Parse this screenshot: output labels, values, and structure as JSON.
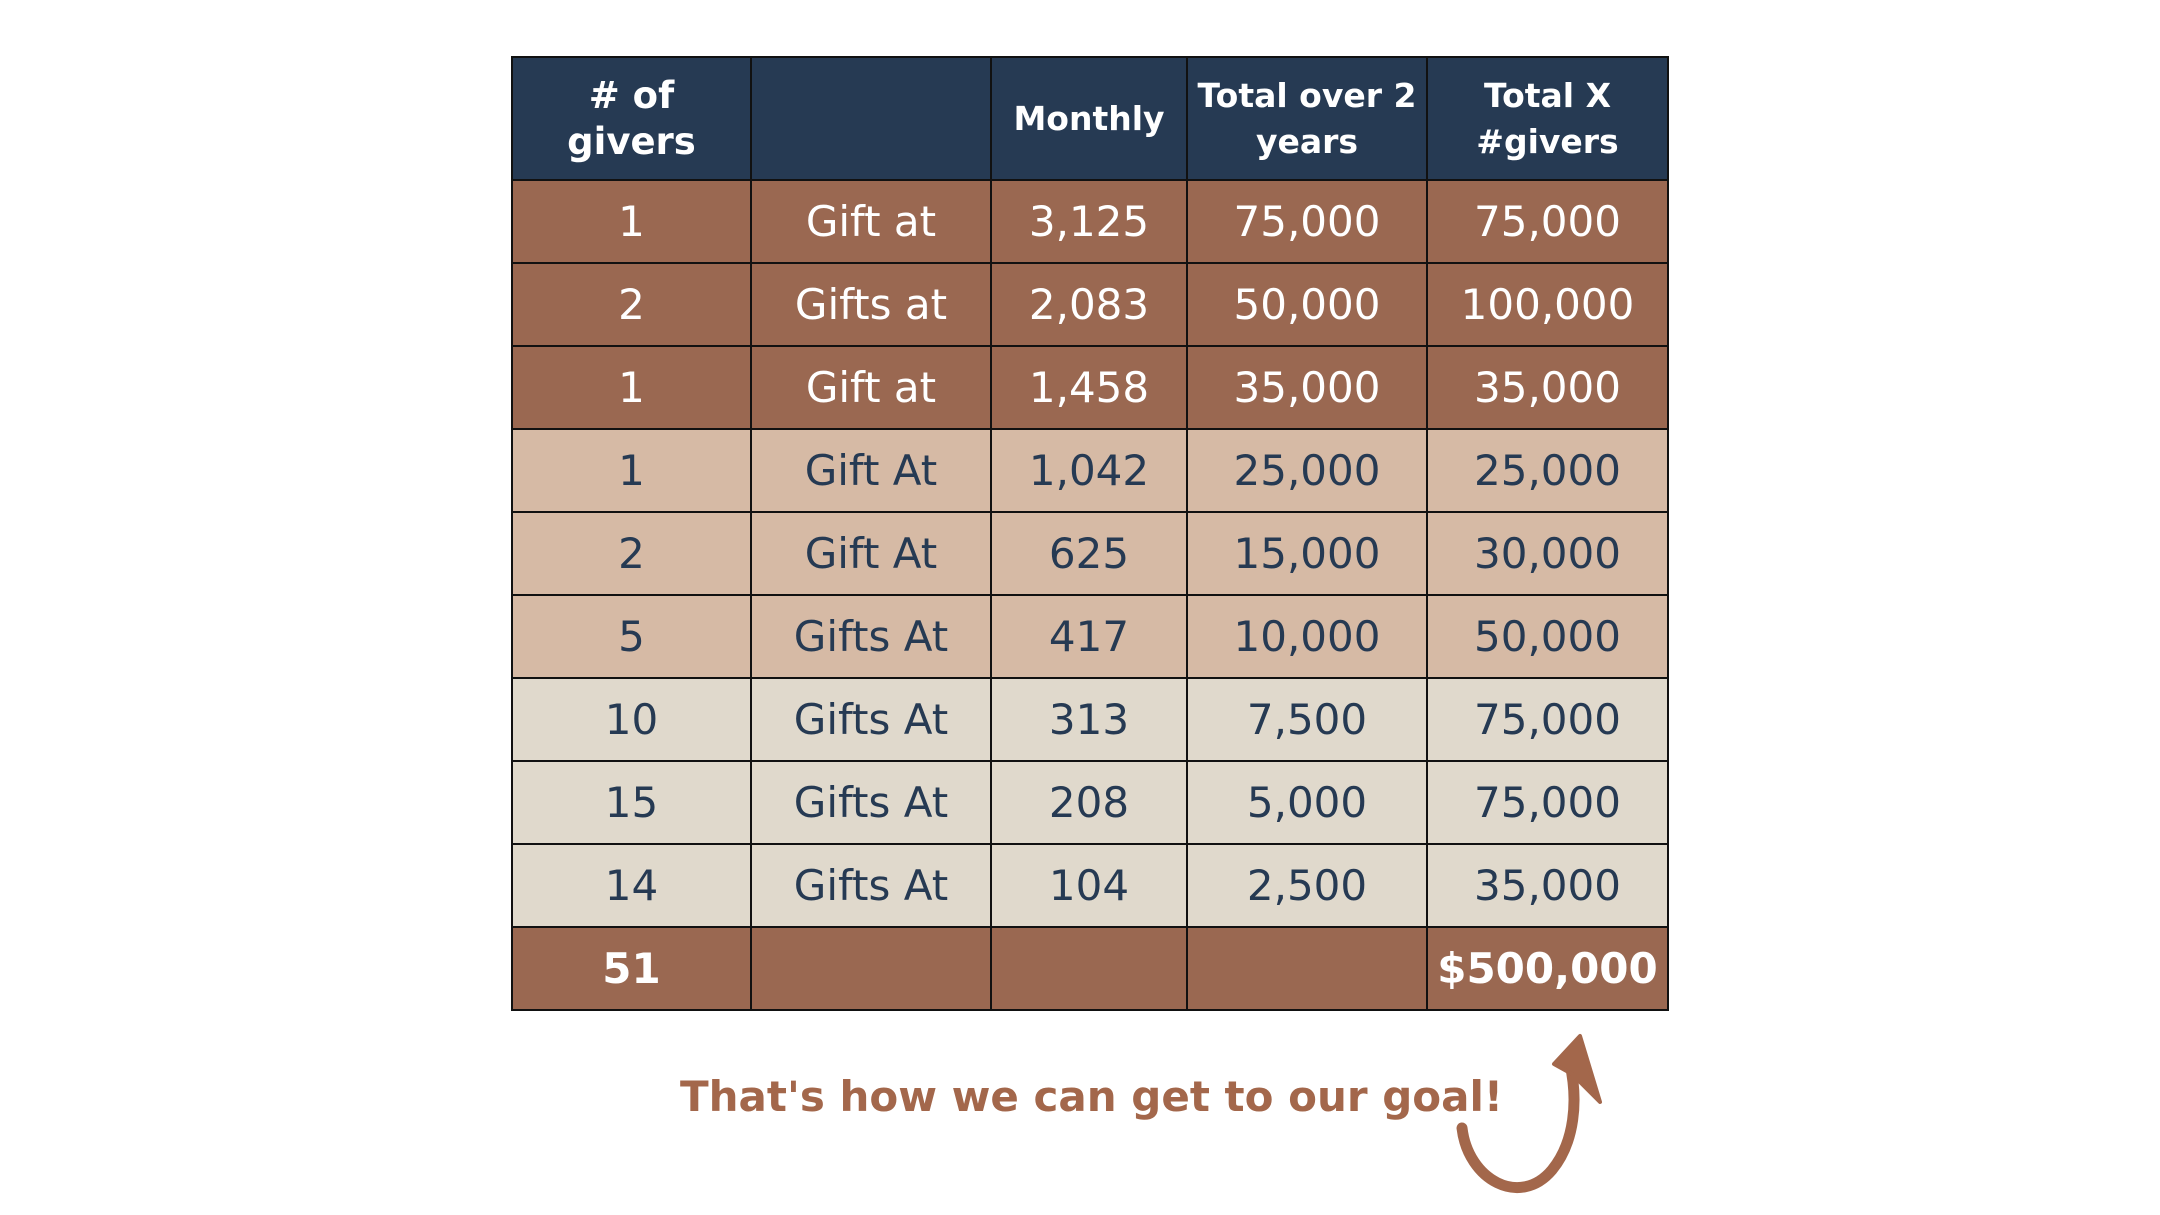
{
  "table": {
    "headers": [
      "# of givers",
      "",
      "Monthly",
      "Total over 2 years",
      "Total X #givers"
    ],
    "rows": [
      {
        "givers": "1",
        "label": "Gift at",
        "monthly": "3,125",
        "total2y": "75,000",
        "totalX": "75,000",
        "tier": "dark"
      },
      {
        "givers": "2",
        "label": "Gifts at",
        "monthly": "2,083",
        "total2y": "50,000",
        "totalX": "100,000",
        "tier": "dark"
      },
      {
        "givers": "1",
        "label": "Gift at",
        "monthly": "1,458",
        "total2y": "35,000",
        "totalX": "35,000",
        "tier": "dark"
      },
      {
        "givers": "1",
        "label": "Gift At",
        "monthly": "1,042",
        "total2y": "25,000",
        "totalX": "25,000",
        "tier": "mid"
      },
      {
        "givers": "2",
        "label": "Gift At",
        "monthly": "625",
        "total2y": "15,000",
        "totalX": "30,000",
        "tier": "mid"
      },
      {
        "givers": "5",
        "label": "Gifts At",
        "monthly": "417",
        "total2y": "10,000",
        "totalX": "50,000",
        "tier": "mid"
      },
      {
        "givers": "10",
        "label": "Gifts At",
        "monthly": "313",
        "total2y": "7,500",
        "totalX": "75,000",
        "tier": "light"
      },
      {
        "givers": "15",
        "label": "Gifts At",
        "monthly": "208",
        "total2y": "5,000",
        "totalX": "75,000",
        "tier": "light"
      },
      {
        "givers": "14",
        "label": "Gifts At",
        "monthly": "104",
        "total2y": "2,500",
        "totalX": "35,000",
        "tier": "light"
      }
    ],
    "total_row": {
      "givers": "51",
      "label": "",
      "monthly": "",
      "total2y": "",
      "totalX": "$500,000"
    }
  },
  "note": {
    "text": "That's how we can get to our goal!"
  },
  "colors": {
    "header": "#263a53",
    "tier_dark": "#9a6851",
    "tier_mid": "#d6baa5",
    "tier_light": "#e0d9cc",
    "note_text": "#a3674b",
    "arrow": "#a3674b"
  },
  "icons": {
    "arrow": "curved-arrow-up-icon"
  }
}
